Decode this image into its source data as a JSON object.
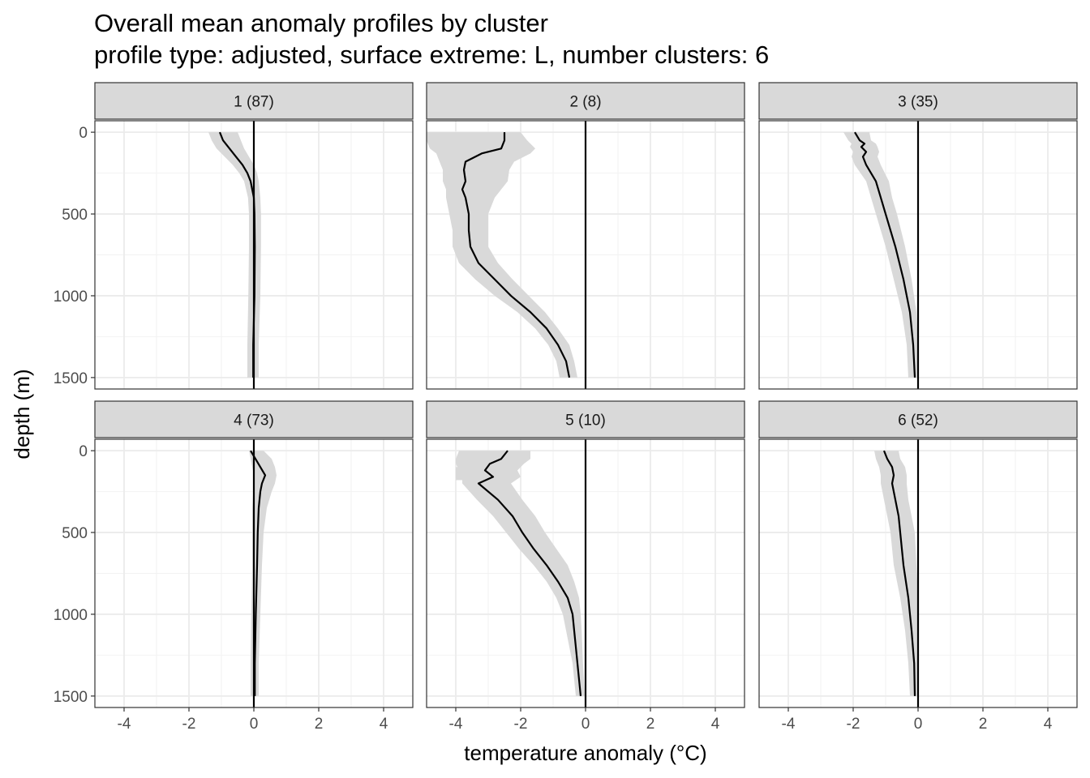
{
  "chart_data": {
    "type": "line",
    "title": "Overall mean anomaly profiles by cluster",
    "subtitle": "profile type: adjusted, surface extreme: L, number clusters: 6",
    "xlabel": "temperature anomaly (°C)",
    "ylabel": "depth (m)",
    "xlim": [
      -4.9,
      4.9
    ],
    "ylim": [
      -70,
      1570
    ],
    "y_reversed": true,
    "grid": true,
    "xticks": [
      -4,
      -2,
      0,
      2,
      4
    ],
    "xtick_labels": [
      "-4",
      "-2",
      "0",
      "2",
      "4"
    ],
    "yticks": [
      0,
      500,
      1000,
      1500
    ],
    "ytick_labels": [
      "0",
      "500",
      "1000",
      "1500"
    ],
    "reference_line_x": 0,
    "colors": {
      "mean_line": "#000000",
      "ribbon": "#d9d9d9",
      "strip": "#d9d9d9"
    },
    "panels": [
      {
        "label": "1 (87)",
        "depth": [
          0,
          50,
          100,
          150,
          200,
          250,
          300,
          400,
          500,
          700,
          1000,
          1300,
          1500
        ],
        "mean": [
          -1.05,
          -0.95,
          -0.75,
          -0.55,
          -0.35,
          -0.2,
          -0.1,
          0.0,
          0.02,
          0.03,
          0.02,
          -0.02,
          -0.02
        ],
        "lower": [
          -1.4,
          -1.3,
          -1.15,
          -0.9,
          -0.65,
          -0.45,
          -0.3,
          -0.18,
          -0.15,
          -0.15,
          -0.17,
          -0.2,
          -0.2
        ],
        "upper": [
          -0.5,
          -0.4,
          -0.3,
          -0.15,
          0.0,
          0.1,
          0.15,
          0.2,
          0.22,
          0.22,
          0.2,
          0.15,
          0.15
        ]
      },
      {
        "label": "2 (8)",
        "depth": [
          0,
          50,
          100,
          130,
          180,
          230,
          300,
          350,
          400,
          500,
          600,
          700,
          800,
          900,
          1000,
          1100,
          1200,
          1300,
          1400,
          1500
        ],
        "mean": [
          -2.5,
          -2.5,
          -2.6,
          -3.2,
          -3.7,
          -3.75,
          -3.7,
          -3.8,
          -3.7,
          -3.6,
          -3.6,
          -3.55,
          -3.3,
          -2.8,
          -2.3,
          -1.7,
          -1.2,
          -0.85,
          -0.6,
          -0.5
        ],
        "lower": [
          -4.9,
          -4.9,
          -4.8,
          -4.6,
          -4.5,
          -4.4,
          -4.4,
          -4.3,
          -4.3,
          -4.2,
          -4.1,
          -4.1,
          -3.9,
          -3.4,
          -2.8,
          -2.1,
          -1.55,
          -1.15,
          -0.9,
          -0.8
        ],
        "upper": [
          -2.0,
          -1.8,
          -1.55,
          -1.7,
          -2.2,
          -2.35,
          -2.4,
          -2.6,
          -2.8,
          -3.0,
          -3.0,
          -3.0,
          -2.7,
          -2.25,
          -1.75,
          -1.25,
          -0.85,
          -0.5,
          -0.35,
          -0.25
        ]
      },
      {
        "label": "3 (35)",
        "depth": [
          0,
          50,
          70,
          90,
          120,
          150,
          200,
          300,
          400,
          500,
          700,
          900,
          1100,
          1300,
          1500
        ],
        "mean": [
          -1.95,
          -1.8,
          -1.65,
          -1.75,
          -1.6,
          -1.7,
          -1.6,
          -1.3,
          -1.15,
          -1.0,
          -0.7,
          -0.45,
          -0.25,
          -0.15,
          -0.1
        ],
        "lower": [
          -2.3,
          -2.15,
          -2.05,
          -2.1,
          -2.0,
          -2.05,
          -1.95,
          -1.6,
          -1.45,
          -1.3,
          -1.0,
          -0.75,
          -0.5,
          -0.35,
          -0.3
        ],
        "upper": [
          -1.5,
          -1.45,
          -1.3,
          -1.25,
          -1.2,
          -1.25,
          -1.15,
          -0.9,
          -0.8,
          -0.65,
          -0.4,
          -0.2,
          -0.05,
          0.0,
          0.0
        ]
      },
      {
        "label": "4 (73)",
        "depth": [
          0,
          50,
          100,
          150,
          200,
          250,
          350,
          500,
          700,
          1000,
          1300,
          1500
        ],
        "mean": [
          -0.1,
          0.05,
          0.2,
          0.35,
          0.25,
          0.2,
          0.15,
          0.12,
          0.1,
          0.06,
          0.03,
          0.03
        ],
        "lower": [
          -0.15,
          -0.1,
          -0.05,
          0.0,
          -0.02,
          -0.02,
          -0.05,
          -0.05,
          -0.05,
          -0.08,
          -0.1,
          -0.1
        ],
        "upper": [
          0.3,
          0.55,
          0.65,
          0.7,
          0.65,
          0.55,
          0.4,
          0.3,
          0.25,
          0.2,
          0.15,
          0.15
        ]
      },
      {
        "label": "5 (10)",
        "depth": [
          0,
          50,
          80,
          120,
          160,
          200,
          300,
          400,
          500,
          600,
          700,
          800,
          900,
          1000,
          1100,
          1200,
          1300,
          1400,
          1500
        ],
        "mean": [
          -2.4,
          -2.6,
          -2.95,
          -3.1,
          -2.85,
          -3.3,
          -2.7,
          -2.25,
          -1.95,
          -1.6,
          -1.2,
          -0.85,
          -0.55,
          -0.4,
          -0.35,
          -0.3,
          -0.25,
          -0.2,
          -0.15
        ],
        "lower": [
          -3.9,
          -4.0,
          -4.0,
          -3.9,
          -3.8,
          -3.8,
          -3.35,
          -2.85,
          -2.45,
          -2.05,
          -1.6,
          -1.2,
          -0.9,
          -0.7,
          -0.6,
          -0.5,
          -0.4,
          -0.35,
          -0.3
        ],
        "upper": [
          -1.7,
          -1.7,
          -1.9,
          -2.1,
          -2.0,
          -2.3,
          -1.95,
          -1.55,
          -1.25,
          -0.9,
          -0.55,
          -0.35,
          -0.2,
          -0.15,
          -0.12,
          -0.1,
          -0.08,
          -0.05,
          -0.03
        ],
        "extra_band": [
          [
            -4.0,
            -3.2
          ],
          [
            100,
            180
          ]
        ]
      },
      {
        "label": "6 (52)",
        "depth": [
          0,
          50,
          100,
          150,
          200,
          300,
          400,
          500,
          700,
          900,
          1100,
          1300,
          1500
        ],
        "mean": [
          -1.05,
          -0.95,
          -0.8,
          -0.75,
          -0.8,
          -0.7,
          -0.6,
          -0.55,
          -0.45,
          -0.3,
          -0.2,
          -0.12,
          -0.1
        ],
        "lower": [
          -1.35,
          -1.3,
          -1.2,
          -1.15,
          -1.15,
          -1.05,
          -0.95,
          -0.85,
          -0.75,
          -0.55,
          -0.4,
          -0.3,
          -0.25
        ],
        "upper": [
          -0.6,
          -0.55,
          -0.4,
          -0.35,
          -0.35,
          -0.3,
          -0.2,
          -0.1,
          -0.05,
          0.0,
          0.0,
          0.0,
          0.0
        ]
      }
    ]
  }
}
